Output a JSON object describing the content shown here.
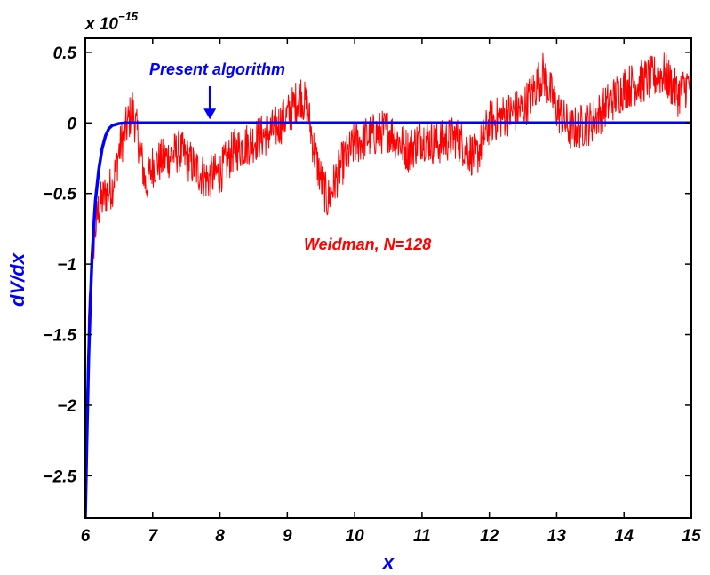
{
  "chart_data": {
    "type": "line",
    "title": "",
    "xlabel": "x",
    "ylabel": "dV/dx",
    "y_multiplier": {
      "base": "x 10",
      "exponent": "−15"
    },
    "xlim": [
      6,
      15
    ],
    "ylim": [
      -2.8e-15,
      6e-16
    ],
    "x_ticks": [
      6,
      7,
      8,
      9,
      10,
      11,
      12,
      13,
      14,
      15
    ],
    "y_ticks": [
      {
        "value": 5e-16,
        "label": "0.5"
      },
      {
        "value": 0,
        "label": "0"
      },
      {
        "value": -5e-16,
        "label": "−0.5"
      },
      {
        "value": -1e-15,
        "label": "−1"
      },
      {
        "value": -1.5e-15,
        "label": "−1.5"
      },
      {
        "value": -2e-15,
        "label": "−2"
      },
      {
        "value": -2.5e-15,
        "label": "−2.5"
      }
    ],
    "grid": false,
    "annotations": [
      {
        "text": "Present algorithm",
        "color": "#0000ff",
        "points_to_x": 7.85,
        "points_to_y": 0
      },
      {
        "text": "Weidman, N=128",
        "color": "#ff0000"
      }
    ],
    "series": [
      {
        "name": "Present algorithm",
        "color": "#0000ff",
        "x": [
          6.0,
          6.02,
          6.05,
          6.08,
          6.1,
          6.13,
          6.15,
          6.2,
          6.25,
          6.3,
          6.35,
          6.4,
          6.5,
          6.6,
          7.0,
          8.0,
          9.0,
          10.0,
          11.0,
          12.0,
          13.0,
          14.0,
          15.0
        ],
        "y": [
          -2.8e-15,
          -2.3e-15,
          -1.65e-15,
          -1.2e-15,
          -9.5e-16,
          -7e-16,
          -5.5e-16,
          -3.3e-16,
          -1.8e-16,
          -9e-17,
          -4e-17,
          -1.8e-17,
          -4e-18,
          0,
          0,
          0,
          0,
          0,
          0,
          0,
          0,
          0,
          0
        ]
      },
      {
        "name": "Weidman, N=128",
        "color": "#ff0000",
        "x": [
          6.0,
          6.05,
          6.1,
          6.15,
          6.2,
          6.3,
          6.4,
          6.5,
          6.6,
          6.7,
          6.8,
          6.9,
          7.0,
          7.2,
          7.4,
          7.6,
          7.8,
          8.0,
          8.2,
          8.4,
          8.6,
          8.8,
          9.0,
          9.2,
          9.3,
          9.4,
          9.5,
          9.6,
          9.8,
          10.0,
          10.2,
          10.5,
          10.8,
          11.0,
          11.2,
          11.5,
          11.8,
          12.0,
          12.2,
          12.5,
          12.8,
          13.0,
          13.2,
          13.5,
          13.8,
          14.0,
          14.3,
          14.6,
          14.8,
          15.0
        ],
        "y": [
          -2.5e-15,
          -1.4e-15,
          -9.5e-16,
          -7.5e-16,
          -6e-16,
          -5e-16,
          -4.5e-16,
          -2e-16,
          -5e-17,
          1e-16,
          -1.5e-16,
          -4.5e-16,
          -3e-16,
          -2.5e-16,
          -2e-16,
          -3e-16,
          -4e-16,
          -3.5e-16,
          -2e-16,
          -1.5e-16,
          -1e-16,
          -5e-17,
          5e-17,
          2e-16,
          1e-16,
          -2e-16,
          -4e-16,
          -5.5e-16,
          -3e-16,
          -1.5e-16,
          -1e-16,
          -5e-17,
          -2e-16,
          -1e-16,
          -1.5e-16,
          -1e-16,
          -2.5e-16,
          0.0,
          5e-17,
          1e-16,
          3.5e-16,
          1e-16,
          -5e-17,
          0.0,
          1.5e-16,
          2.5e-16,
          3e-16,
          3.5e-16,
          2e-16,
          3e-16
        ]
      }
    ]
  }
}
